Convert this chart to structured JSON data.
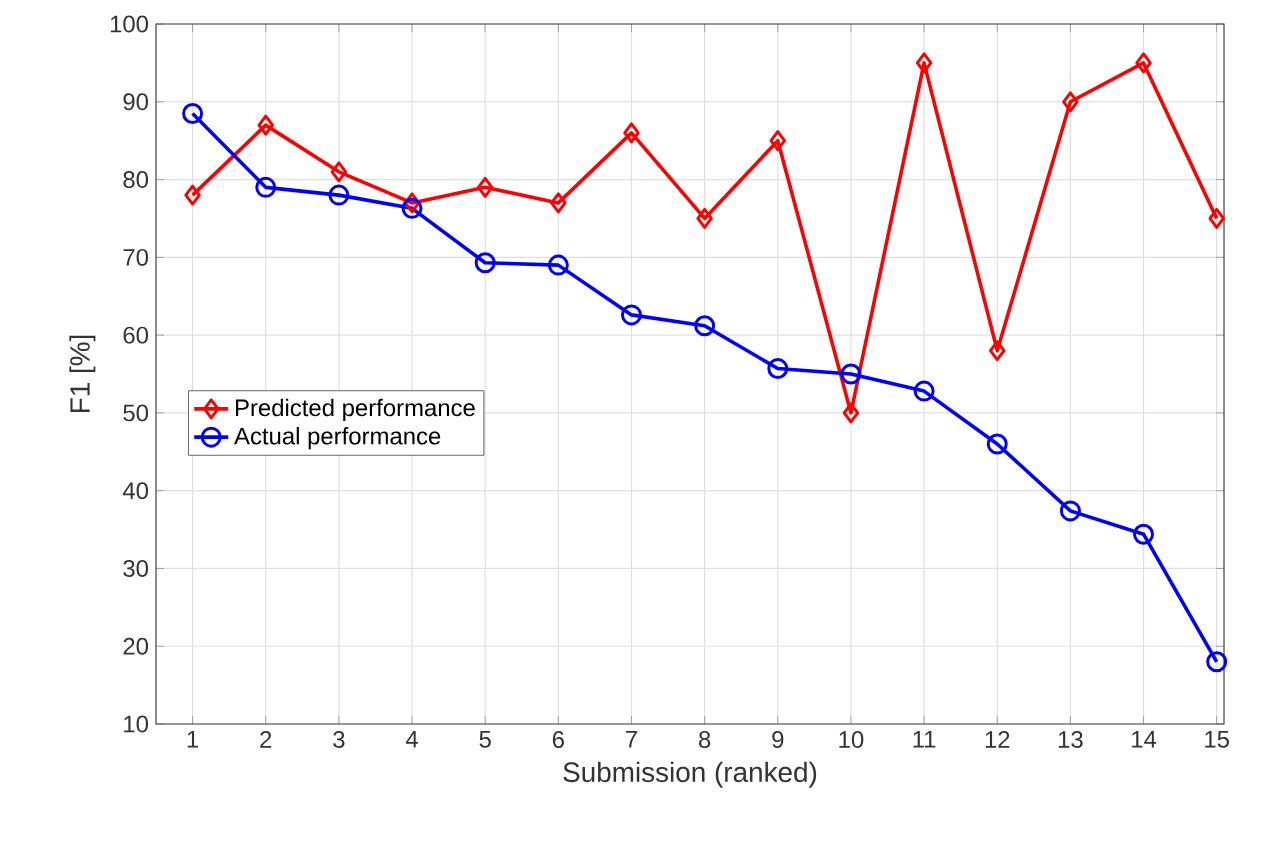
{
  "chart_data": {
    "type": "line",
    "xlabel": "Submission (ranked)",
    "ylabel": "F1 [%]",
    "x": [
      1,
      2,
      3,
      4,
      5,
      6,
      7,
      8,
      9,
      10,
      11,
      12,
      13,
      14,
      15
    ],
    "series": [
      {
        "name": "Predicted performance",
        "color": "#ff0000",
        "marker": "diamond",
        "values": [
          78,
          87,
          81,
          77,
          79,
          77,
          86,
          75,
          85,
          50,
          95,
          58,
          90,
          95,
          75
        ]
      },
      {
        "name": "Actual performance",
        "color": "#0000ff",
        "marker": "circle",
        "values": [
          88.5,
          79,
          78,
          76.3,
          69.3,
          69,
          62.6,
          61.2,
          55.7,
          55,
          52.8,
          46,
          37.4,
          34.4,
          18
        ]
      }
    ],
    "xlim": [
      0.5,
      15.1
    ],
    "ylim": [
      10,
      100
    ],
    "xticks": [
      1,
      2,
      3,
      4,
      5,
      6,
      7,
      8,
      9,
      10,
      11,
      12,
      13,
      14,
      15
    ],
    "yticks": [
      10,
      20,
      30,
      40,
      50,
      60,
      70,
      80,
      90,
      100
    ],
    "grid": true,
    "legend": "left",
    "line_style": "solid"
  }
}
